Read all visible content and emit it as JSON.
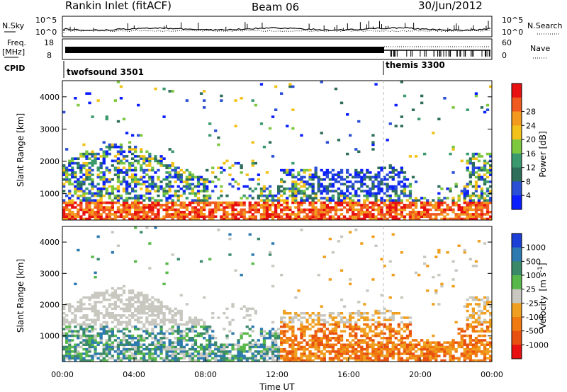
{
  "header": {
    "station": "Rankin Inlet (fitACF)",
    "beam": "Beam 06",
    "date": "30/Jun/2012"
  },
  "noise_panel": {
    "left_label": "N.Sky",
    "right_label": "N.Search",
    "left_top_tick": "10^5",
    "left_bottom_tick": "10^0",
    "right_top_tick": "10^5",
    "right_bottom_tick": "10^0"
  },
  "freq_panel": {
    "left_label_line1": "Freq.",
    "left_label_line2": "[MHz]",
    "left_top_tick": "18",
    "left_bottom_tick": "8",
    "right_label": "Nave",
    "right_top_tick": "60",
    "right_bottom_tick": "0"
  },
  "cpid": {
    "label": "CPID",
    "modes": [
      {
        "name": "twofsound 3501",
        "start_hour": 0
      },
      {
        "name": "themis 3300",
        "start_hour": 18
      }
    ]
  },
  "chart_data": [
    {
      "type": "heatmap",
      "ylabel": "Slant Range [km]",
      "xlabel": "",
      "x_range_hours": [
        0,
        24
      ],
      "ylim": [
        180,
        4500
      ],
      "yticks": [
        1000,
        2000,
        3000,
        4000
      ],
      "colorbar": {
        "label": "Power [dB]",
        "ticks": [
          "4",
          "8",
          "12",
          "16",
          "20",
          "24",
          "28"
        ],
        "colors": [
          "#0a1eff",
          "#2a4fd6",
          "#2f6e5a",
          "#3a9a6e",
          "#7ec840",
          "#f2c21a",
          "#f39a1e",
          "#f05a1e",
          "#e81010"
        ]
      }
    },
    {
      "type": "heatmap",
      "ylabel": "Slant Range [km]",
      "xlabel": "Time UT",
      "x_range_hours": [
        0,
        24
      ],
      "xticks": [
        "00:00",
        "04:00",
        "08:00",
        "12:00",
        "16:00",
        "20:00",
        "00:00"
      ],
      "ylim": [
        180,
        4500
      ],
      "yticks": [
        1000,
        2000,
        3000,
        4000
      ],
      "colorbar": {
        "label": "Velocity",
        "unit": "[m s",
        "unit_exp": "-1",
        "unit_close": "]",
        "ticks": [
          "1000",
          "500",
          "100",
          "25",
          "-25",
          "-100",
          "-500",
          "-1000"
        ],
        "colors": [
          "#1c3fd8",
          "#2d7ab0",
          "#3a8a6a",
          "#58b84a",
          "#c8c8c0",
          "#f0a020",
          "#f07a10",
          "#e85010",
          "#e81010"
        ]
      }
    }
  ]
}
